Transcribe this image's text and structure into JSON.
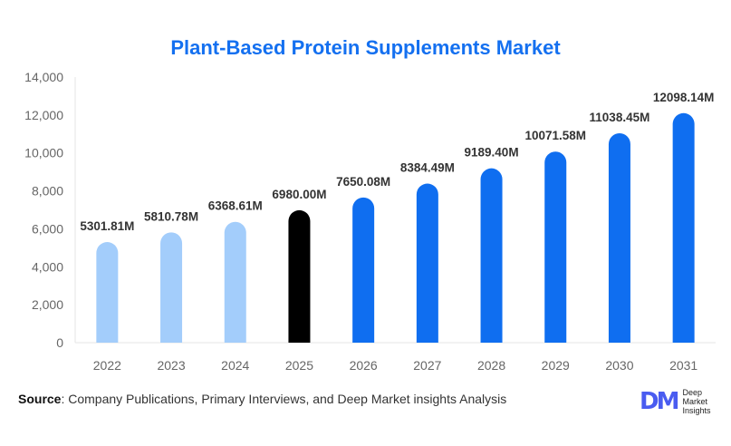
{
  "chart_data": {
    "type": "bar",
    "title": "Plant-Based Protein Supplements Market",
    "categories": [
      "2022",
      "2023",
      "2024",
      "2025",
      "2026",
      "2027",
      "2028",
      "2029",
      "2030",
      "2031"
    ],
    "values": [
      5301.81,
      5810.78,
      6368.61,
      6980.0,
      7650.08,
      8384.49,
      9189.4,
      10071.58,
      11038.45,
      12098.14
    ],
    "data_labels": [
      "5301.81M",
      "5810.78M",
      "6368.61M",
      "6980.00M",
      "7650.08M",
      "8384.49M",
      "9189.40M",
      "10071.58M",
      "11038.45M",
      "12098.14M"
    ],
    "bar_colors": [
      "#a3cdfb",
      "#a3cdfb",
      "#a3cdfb",
      "#000000",
      "#0f6ef0",
      "#0f6ef0",
      "#0f6ef0",
      "#0f6ef0",
      "#0f6ef0",
      "#0f6ef0"
    ],
    "ylim": [
      0,
      14000
    ],
    "yticks": [
      0,
      2000,
      4000,
      6000,
      8000,
      10000,
      12000,
      14000
    ],
    "ytick_labels": [
      "0",
      "2,000",
      "4,000",
      "6,000",
      "8,000",
      "10,000",
      "12,000",
      "14,000"
    ],
    "xlabel": "",
    "ylabel": "",
    "grid": false
  },
  "source": {
    "label": "Source",
    "text": ": Company Publications, Primary Interviews, and Deep Market insights Analysis"
  },
  "logo": {
    "mark": "DM",
    "line1": "Deep",
    "line2": "Market",
    "line3": "Insights"
  }
}
